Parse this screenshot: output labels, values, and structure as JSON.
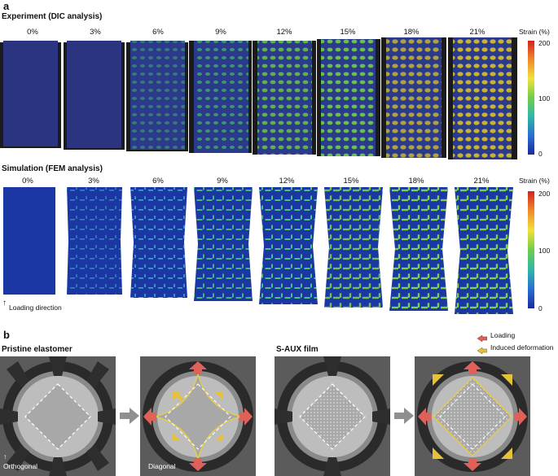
{
  "panel_a": {
    "letter": "a",
    "experiment_title": "Experiment (DIC analysis)",
    "simulation_title": "Simulation (FEM analysis)",
    "strain_labels": [
      "0%",
      "3%",
      "6%",
      "9%",
      "12%",
      "15%",
      "18%",
      "21%"
    ],
    "legend": {
      "title": "Strain (%)",
      "ticks": [
        "200",
        "100",
        "0"
      ]
    },
    "loading_direction": "Loading direction"
  },
  "panel_b": {
    "letter": "b",
    "pristine_title": "Pristine elastomer",
    "saux_title": "S-AUX film",
    "legend_loading": "Loading",
    "legend_induced": "Induced deformation",
    "orthogonal_label": "Orthogonal",
    "diagonal_label": "Diagonal"
  },
  "colors": {
    "dic_background": "#23317a",
    "fem_background": "#17359e",
    "loading_arrow": "#e0605a",
    "induced_arrow": "#e6c23a",
    "outline_yellow": "#e8d23a"
  }
}
